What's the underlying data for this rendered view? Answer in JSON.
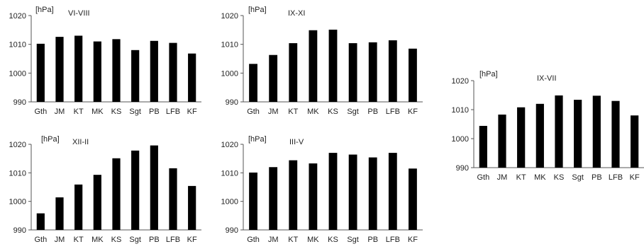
{
  "chart_data": [
    {
      "type": "bar",
      "title": "VI-VIII",
      "ylabel": "[hPa]",
      "categories": [
        "Gth",
        "JM",
        "KT",
        "MK",
        "KS",
        "Sgt",
        "PB",
        "LFB",
        "KF"
      ],
      "values": [
        1010.2,
        1012.6,
        1013.0,
        1011.0,
        1011.8,
        1008.0,
        1011.2,
        1010.5,
        1006.8
      ],
      "ylim": [
        990,
        1020
      ],
      "yticks": [
        990,
        1000,
        1010,
        1020
      ],
      "grid": false,
      "color": "#000000"
    },
    {
      "type": "bar",
      "title": "IX-XI",
      "ylabel": "[hPa]",
      "categories": [
        "Gth",
        "JM",
        "KT",
        "MK",
        "KS",
        "Sgt",
        "PB",
        "LFB",
        "KF"
      ],
      "values": [
        1003.2,
        1006.3,
        1010.4,
        1014.9,
        1015.1,
        1010.4,
        1010.7,
        1011.4,
        1008.5
      ],
      "ylim": [
        990,
        1020
      ],
      "yticks": [
        990,
        1000,
        1010,
        1020
      ],
      "grid": false,
      "color": "#000000"
    },
    {
      "type": "bar",
      "title": "XII-II",
      "ylabel": "[hPa]",
      "categories": [
        "Gth",
        "JM",
        "KT",
        "MK",
        "KS",
        "Sgt",
        "PB",
        "LFB",
        "KF"
      ],
      "values": [
        995.8,
        1001.4,
        1005.9,
        1009.3,
        1015.1,
        1017.8,
        1019.6,
        1011.6,
        1005.4
      ],
      "ylim": [
        990,
        1020
      ],
      "yticks": [
        990,
        1000,
        1010,
        1020
      ],
      "grid": false,
      "color": "#000000"
    },
    {
      "type": "bar",
      "title": "III-V",
      "ylabel": "[hPa]",
      "categories": [
        "Gth",
        "JM",
        "KT",
        "MK",
        "KS",
        "Sgt",
        "PB",
        "LFB",
        "KF"
      ],
      "values": [
        1010.1,
        1012.0,
        1014.4,
        1013.3,
        1017.0,
        1016.4,
        1015.4,
        1017.0,
        1011.5
      ],
      "ylim": [
        990,
        1020
      ],
      "yticks": [
        990,
        1000,
        1010,
        1020
      ],
      "grid": false,
      "color": "#000000"
    },
    {
      "type": "bar",
      "title": "IX-VII",
      "ylabel": "[hPa]",
      "categories": [
        "Gth",
        "JM",
        "KT",
        "MK",
        "KS",
        "Sgt",
        "PB",
        "LFB",
        "KF"
      ],
      "values": [
        1004.4,
        1008.3,
        1010.8,
        1012.0,
        1014.9,
        1013.4,
        1014.8,
        1013.0,
        1008.0
      ],
      "ylim": [
        990,
        1020
      ],
      "yticks": [
        990,
        1000,
        1010,
        1020
      ],
      "grid": false,
      "color": "#000000"
    }
  ]
}
